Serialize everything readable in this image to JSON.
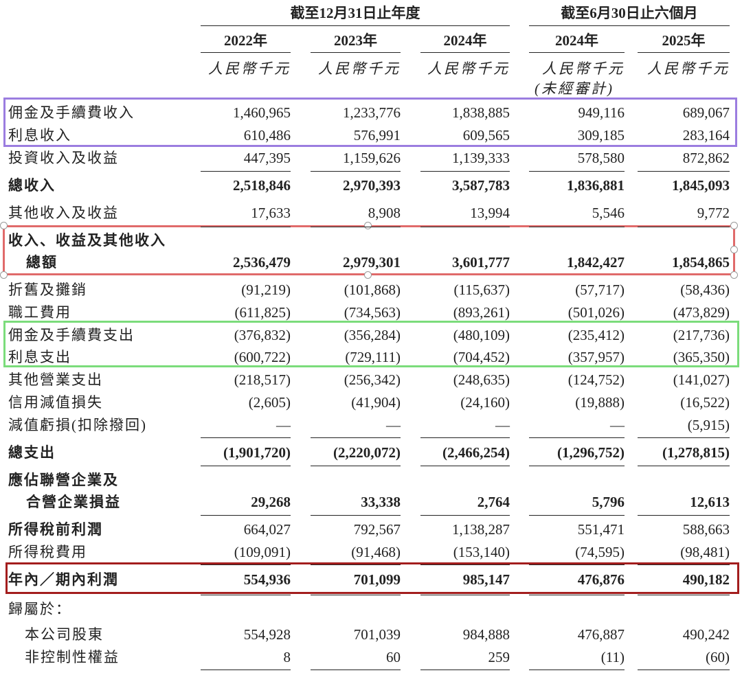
{
  "header": {
    "groups": [
      "截至12月31日止年度",
      "截至6月30日止六個月"
    ],
    "years": [
      "2022年",
      "2023年",
      "2024年",
      "2024年",
      "2025年"
    ],
    "units": [
      "人民幣千元",
      "人民幣千元",
      "人民幣千元",
      "人民幣千元",
      "人民幣千元"
    ],
    "note": "(未經審計)"
  },
  "rows": [
    {
      "label": [
        "佣金及手續費收入"
      ],
      "values": [
        "1,460,965",
        "1,233,776",
        "1,838,885",
        "949,116",
        "689,067"
      ]
    },
    {
      "label": [
        "利息收入"
      ],
      "values": [
        "610,486",
        "576,991",
        "609,565",
        "309,185",
        "283,164"
      ]
    },
    {
      "label": [
        "投資收入及收益"
      ],
      "values": [
        "447,395",
        "1,159,626",
        "1,139,333",
        "578,580",
        "872,862"
      ]
    },
    {
      "label": [
        "總收入"
      ],
      "values": [
        "2,518,846",
        "2,970,393",
        "3,587,783",
        "1,836,881",
        "1,845,093"
      ]
    },
    {
      "label": [
        "其他收入及收益"
      ],
      "values": [
        "17,633",
        "8,908",
        "13,994",
        "5,546",
        "9,772"
      ]
    },
    {
      "label": [
        "收入、收益及其他收入",
        "總額"
      ],
      "values": [
        "2,536,479",
        "2,979,301",
        "3,601,777",
        "1,842,427",
        "1,854,865"
      ]
    },
    {
      "label": [
        "折舊及攤銷"
      ],
      "values": [
        "(91,219)",
        "(101,868)",
        "(115,637)",
        "(57,717)",
        "(58,436)"
      ]
    },
    {
      "label": [
        "職工費用"
      ],
      "values": [
        "(611,825)",
        "(734,563)",
        "(893,261)",
        "(501,026)",
        "(473,829)"
      ]
    },
    {
      "label": [
        "佣金及手續費支出"
      ],
      "values": [
        "(376,832)",
        "(356,284)",
        "(480,109)",
        "(235,412)",
        "(217,736)"
      ]
    },
    {
      "label": [
        "利息支出"
      ],
      "values": [
        "(600,722)",
        "(729,111)",
        "(704,452)",
        "(357,957)",
        "(365,350)"
      ]
    },
    {
      "label": [
        "其他營業支出"
      ],
      "values": [
        "(218,517)",
        "(256,342)",
        "(248,635)",
        "(124,752)",
        "(141,027)"
      ]
    },
    {
      "label": [
        "信用減值損失"
      ],
      "values": [
        "(2,605)",
        "(41,904)",
        "(24,160)",
        "(19,888)",
        "(16,522)"
      ]
    },
    {
      "label": [
        "減值虧損(扣除撥回)"
      ],
      "values": [
        "—",
        "—",
        "—",
        "—",
        "(5,915)"
      ]
    },
    {
      "label": [
        "總支出"
      ],
      "values": [
        "(1,901,720)",
        "(2,220,072)",
        "(2,466,254)",
        "(1,296,752)",
        "(1,278,815)"
      ]
    },
    {
      "label": [
        "應佔聯營企業及",
        "合營企業損益"
      ],
      "values": [
        "29,268",
        "33,338",
        "2,764",
        "5,796",
        "12,613"
      ]
    },
    {
      "label": [
        "所得稅前利潤"
      ],
      "values": [
        "664,027",
        "792,567",
        "1,138,287",
        "551,471",
        "588,663"
      ]
    },
    {
      "label": [
        "所得稅費用"
      ],
      "values": [
        "(109,091)",
        "(91,468)",
        "(153,140)",
        "(74,595)",
        "(98,481)"
      ]
    },
    {
      "label": [
        "年內／期內利潤"
      ],
      "values": [
        "554,936",
        "701,099",
        "985,147",
        "476,876",
        "490,182"
      ]
    },
    {
      "label": [
        "歸屬於："
      ],
      "values": []
    },
    {
      "label": [
        "本公司股東"
      ],
      "values": [
        "554,928",
        "701,039",
        "984,888",
        "476,887",
        "490,242"
      ]
    },
    {
      "label": [
        "非控制性權益"
      ],
      "values": [
        "8",
        "60",
        "259",
        "(11)",
        "(60)"
      ]
    }
  ]
}
